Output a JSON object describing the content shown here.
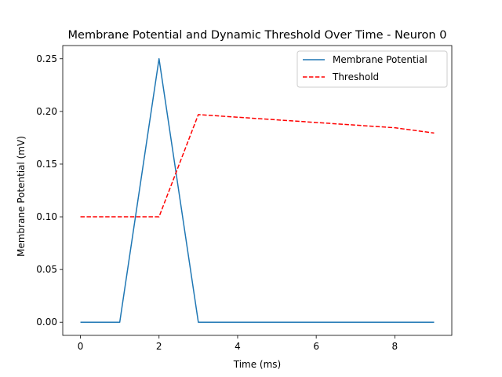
{
  "chart_data": {
    "type": "line",
    "title": "Membrane Potential and Dynamic Threshold Over Time - Neuron 0",
    "xlabel": "Time (ms)",
    "ylabel": "Membrane Potential (mV)",
    "xlim": [
      -0.45,
      9.45
    ],
    "ylim": [
      -0.0125,
      0.2625
    ],
    "xticks": [
      0,
      2,
      4,
      6,
      8
    ],
    "xtick_labels": [
      "0",
      "2",
      "4",
      "6",
      "8"
    ],
    "yticks": [
      0.0,
      0.05,
      0.1,
      0.15,
      0.2,
      0.25
    ],
    "ytick_labels": [
      "0.00",
      "0.05",
      "0.10",
      "0.15",
      "0.20",
      "0.25"
    ],
    "grid": false,
    "legend_position": "top-right",
    "x": [
      0,
      1,
      2,
      3,
      4,
      5,
      6,
      7,
      8,
      9
    ],
    "series": [
      {
        "name": "Membrane Potential",
        "color": "#1f77b4",
        "style": "solid",
        "values": [
          0,
          0,
          0.25,
          0,
          0,
          0,
          0,
          0,
          0,
          0
        ]
      },
      {
        "name": "Threshold",
        "color": "#ff0000",
        "style": "dashed",
        "values": [
          0.1,
          0.1,
          0.1,
          0.197,
          0.1945,
          0.192,
          0.1895,
          0.187,
          0.1845,
          0.1795
        ]
      }
    ]
  }
}
